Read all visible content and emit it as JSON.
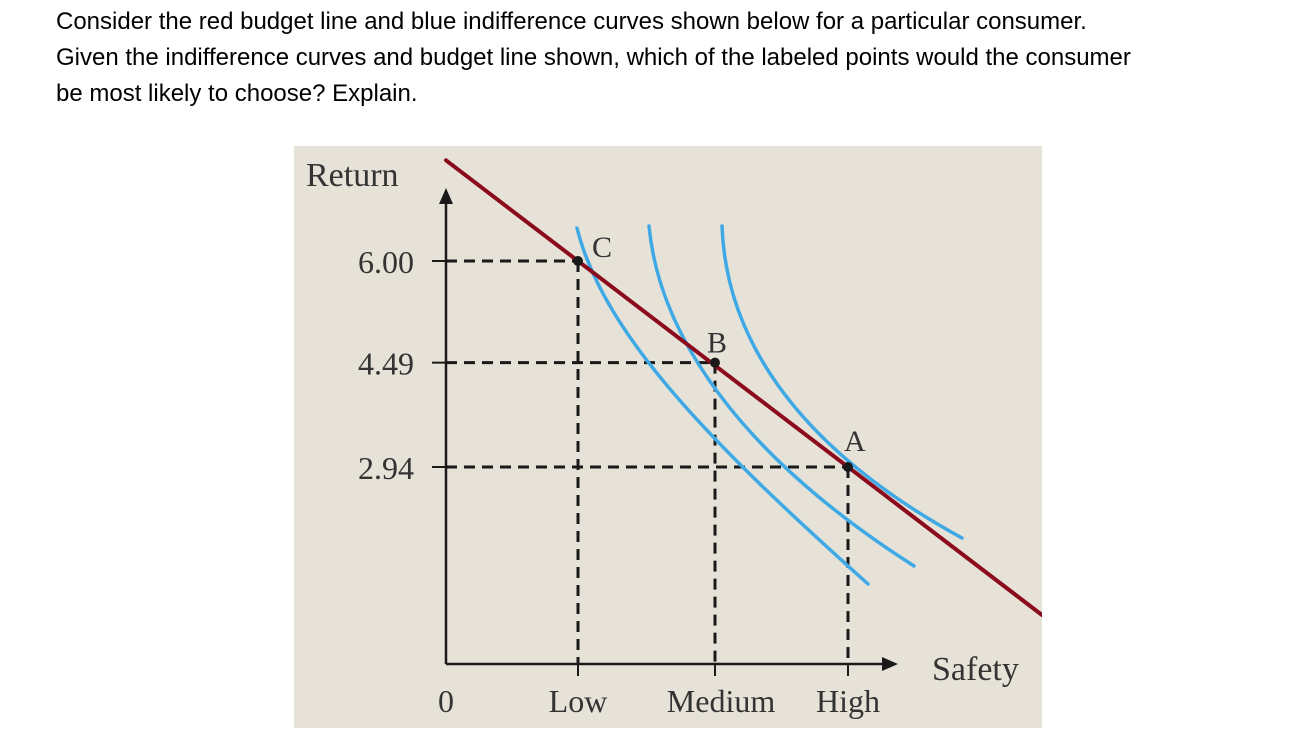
{
  "question": {
    "line1": "Consider the red budget line and blue indifference curves shown below for a particular consumer.",
    "line2": "Given the indifference curves and budget line shown, which of the labeled points would the consumer",
    "line3": "be most likely to choose? Explain."
  },
  "chart_data": {
    "type": "line",
    "title": "",
    "xlabel": "Safety",
    "ylabel": "Return",
    "x_tick_labels": [
      "0",
      "Low",
      "Medium",
      "High"
    ],
    "y_tick_labels": [
      "6.00",
      "4.49",
      "2.94"
    ],
    "points": [
      {
        "label": "C",
        "x": "Low",
        "y": 6.0
      },
      {
        "label": "B",
        "x": "Medium",
        "y": 4.49
      },
      {
        "label": "A",
        "x": "High",
        "y": 2.94
      }
    ],
    "series": [
      {
        "role": "budget line",
        "color": "#8b0a1c"
      },
      {
        "role": "indifference curve",
        "passes_through": "C",
        "color": "#3fa9e6"
      },
      {
        "role": "indifference curve",
        "passes_through": "B",
        "color": "#3fa9e6"
      },
      {
        "role": "indifference curve",
        "passes_through": "A",
        "color": "#3fa9e6"
      }
    ],
    "colors": {
      "background": "#e6e2d8",
      "budget_line": "#8b0a1c",
      "indifference_curves": "#3fa9e6",
      "axes": "#1a1a1a"
    },
    "grid": false,
    "legend": "none"
  }
}
